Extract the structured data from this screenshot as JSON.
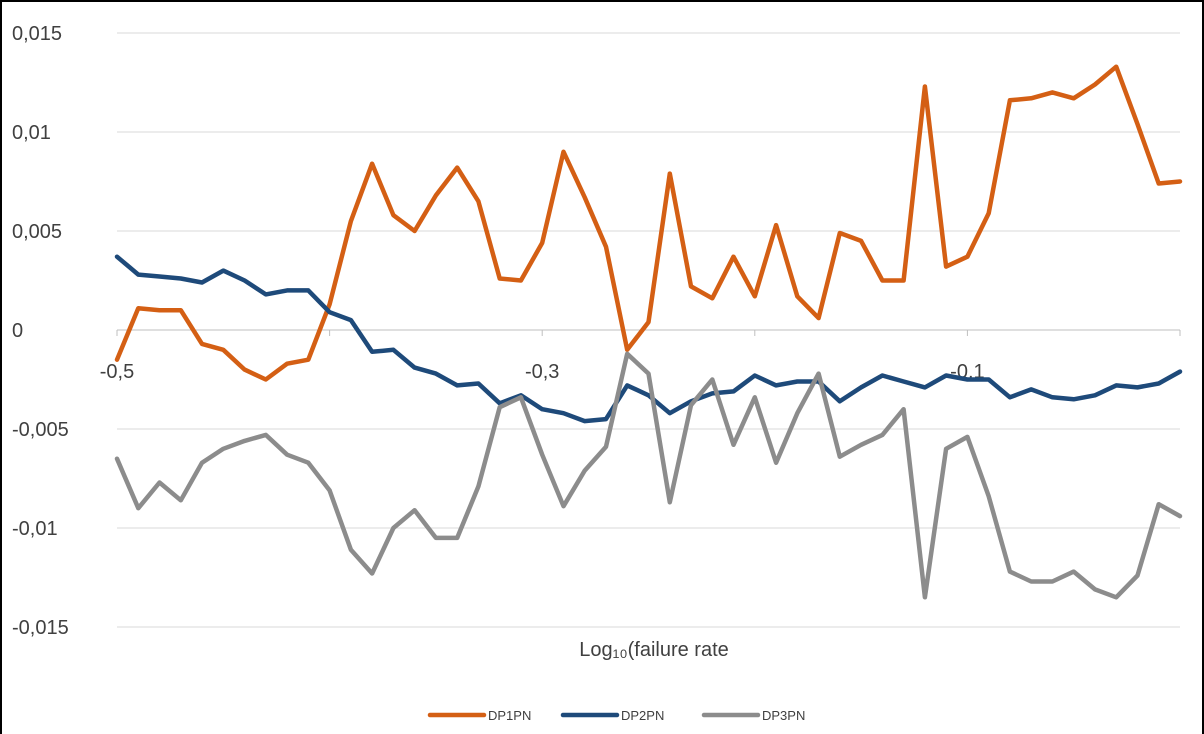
{
  "chart_data": {
    "type": "line",
    "title": "",
    "xlabel": "Log₁₀(failure rate",
    "ylabel": "",
    "xlim": [
      -0.5,
      -0.0
    ],
    "ylim": [
      -0.015,
      0.015
    ],
    "y_ticks": [
      "0,015",
      "0,01",
      "0,005",
      "0",
      "-0,005",
      "-0,01",
      "-0,015"
    ],
    "x_ticks": [
      "-0,5",
      "-0,3",
      "-0,1"
    ],
    "grid": "horizontal",
    "legend_position": "bottom",
    "colors": {
      "DP1PN": "#d45f14",
      "DP2PN": "#1e4a7a",
      "DP3PN": "#8c8c8c"
    },
    "x": [
      -0.5,
      -0.49,
      -0.48,
      -0.47,
      -0.46,
      -0.45,
      -0.44,
      -0.43,
      -0.42,
      -0.41,
      -0.4,
      -0.39,
      -0.38,
      -0.37,
      -0.36,
      -0.35,
      -0.34,
      -0.33,
      -0.32,
      -0.31,
      -0.3,
      -0.29,
      -0.28,
      -0.27,
      -0.26,
      -0.25,
      -0.24,
      -0.23,
      -0.22,
      -0.21,
      -0.2,
      -0.19,
      -0.18,
      -0.17,
      -0.16,
      -0.15,
      -0.14,
      -0.13,
      -0.12,
      -0.11,
      -0.1,
      -0.09,
      -0.08,
      -0.07,
      -0.06,
      -0.05,
      -0.04,
      -0.03,
      -0.02,
      -0.01,
      0.0
    ],
    "series": [
      {
        "name": "DP1PN",
        "values": [
          -0.0015,
          0.0011,
          0.001,
          0.001,
          -0.0007,
          -0.001,
          -0.002,
          -0.0025,
          -0.0017,
          -0.0015,
          0.0013,
          0.0055,
          0.0084,
          0.0058,
          0.005,
          0.0068,
          0.0082,
          0.0065,
          0.0026,
          0.0025,
          0.0044,
          0.009,
          0.0067,
          0.0042,
          -0.001,
          0.0004,
          0.0079,
          0.0022,
          0.0016,
          0.0037,
          0.0017,
          0.0053,
          0.0017,
          0.0006,
          0.0049,
          0.0045,
          0.0025,
          0.0025,
          0.0123,
          0.0032,
          0.0037,
          0.0059,
          0.0116,
          0.0117,
          0.012,
          0.0117,
          0.0124,
          0.0133,
          0.0104,
          0.0074,
          0.0075
        ]
      },
      {
        "name": "DP2PN",
        "values": [
          0.0037,
          0.0028,
          0.0027,
          0.0026,
          0.0024,
          0.003,
          0.0025,
          0.0018,
          0.002,
          0.002,
          0.0009,
          0.0005,
          -0.0011,
          -0.001,
          -0.0019,
          -0.0022,
          -0.0028,
          -0.0027,
          -0.0037,
          -0.0033,
          -0.004,
          -0.0042,
          -0.0046,
          -0.0045,
          -0.0028,
          -0.0033,
          -0.0042,
          -0.0036,
          -0.0032,
          -0.0031,
          -0.0023,
          -0.0028,
          -0.0026,
          -0.0026,
          -0.0036,
          -0.0029,
          -0.0023,
          -0.0026,
          -0.0029,
          -0.0023,
          -0.0025,
          -0.0025,
          -0.0034,
          -0.003,
          -0.0034,
          -0.0035,
          -0.0033,
          -0.0028,
          -0.0029,
          -0.0027,
          -0.0021
        ]
      },
      {
        "name": "DP3PN",
        "values": [
          -0.0065,
          -0.009,
          -0.0077,
          -0.0086,
          -0.0067,
          -0.006,
          -0.0056,
          -0.0053,
          -0.0063,
          -0.0067,
          -0.0081,
          -0.0111,
          -0.0123,
          -0.01,
          -0.0091,
          -0.0105,
          -0.0105,
          -0.0079,
          -0.0039,
          -0.0034,
          -0.0063,
          -0.0089,
          -0.0071,
          -0.0059,
          -0.0012,
          -0.0022,
          -0.0087,
          -0.0038,
          -0.0025,
          -0.0058,
          -0.0034,
          -0.0067,
          -0.0042,
          -0.0022,
          -0.0064,
          -0.0058,
          -0.0053,
          -0.004,
          -0.0135,
          -0.006,
          -0.0054,
          -0.0084,
          -0.0122,
          -0.0127,
          -0.0127,
          -0.0122,
          -0.0131,
          -0.0135,
          -0.0124,
          -0.0088,
          -0.0094
        ]
      }
    ]
  }
}
